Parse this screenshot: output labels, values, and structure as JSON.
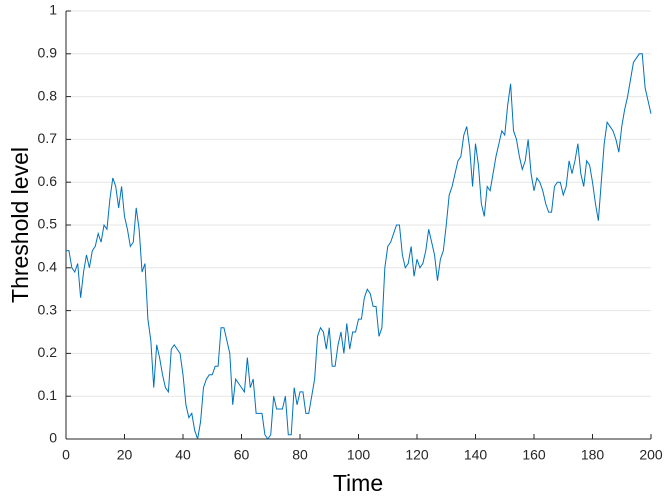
{
  "chart_data": {
    "type": "line",
    "xlabel": "Time",
    "ylabel": "Threshold level",
    "color": "#0072bd",
    "grid": "y",
    "x": [
      0,
      1,
      2,
      3,
      4,
      5,
      6,
      7,
      8,
      9,
      10,
      11,
      12,
      13,
      14,
      15,
      16,
      17,
      18,
      19,
      20,
      21,
      22,
      23,
      24,
      25,
      26,
      27,
      28,
      29,
      30,
      31,
      32,
      33,
      34,
      35,
      36,
      37,
      38,
      39,
      40,
      41,
      42,
      43,
      44,
      45,
      46,
      47,
      48,
      49,
      50,
      51,
      52,
      53,
      54,
      55,
      56,
      57,
      58,
      59,
      60,
      61,
      62,
      63,
      64,
      65,
      66,
      67,
      68,
      69,
      70,
      71,
      72,
      73,
      74,
      75,
      76,
      77,
      78,
      79,
      80,
      81,
      82,
      83,
      84,
      85,
      86,
      87,
      88,
      89,
      90,
      91,
      92,
      93,
      94,
      95,
      96,
      97,
      98,
      99,
      100,
      101,
      102,
      103,
      104,
      105,
      106,
      107,
      108,
      109,
      110,
      111,
      112,
      113,
      114,
      115,
      116,
      117,
      118,
      119,
      120,
      121,
      122,
      123,
      124,
      125,
      126,
      127,
      128,
      129,
      130,
      131,
      132,
      133,
      134,
      135,
      136,
      137,
      138,
      139,
      140,
      141,
      142,
      143,
      144,
      145,
      146,
      147,
      148,
      149,
      150,
      151,
      152,
      153,
      154,
      155,
      156,
      157,
      158,
      159,
      160,
      161,
      162,
      163,
      164,
      165,
      166,
      167,
      168,
      169,
      170,
      171,
      172,
      173,
      174,
      175,
      176,
      177,
      178,
      179,
      180,
      181,
      182,
      183,
      184,
      185,
      186,
      187,
      188,
      189,
      190,
      191,
      192,
      193,
      194,
      195,
      196,
      197,
      198,
      199,
      200
    ],
    "values": [
      0.44,
      0.44,
      0.4,
      0.39,
      0.41,
      0.33,
      0.39,
      0.43,
      0.4,
      0.44,
      0.45,
      0.48,
      0.46,
      0.5,
      0.49,
      0.56,
      0.61,
      0.59,
      0.54,
      0.59,
      0.52,
      0.49,
      0.45,
      0.46,
      0.54,
      0.49,
      0.39,
      0.41,
      0.28,
      0.23,
      0.12,
      0.22,
      0.19,
      0.15,
      0.12,
      0.11,
      0.21,
      0.22,
      0.21,
      0.2,
      0.15,
      0.08,
      0.05,
      0.06,
      0.02,
      0.0,
      0.04,
      0.12,
      0.14,
      0.15,
      0.15,
      0.17,
      0.17,
      0.26,
      0.26,
      0.23,
      0.2,
      0.08,
      0.14,
      0.13,
      0.12,
      0.11,
      0.19,
      0.12,
      0.14,
      0.06,
      0.06,
      0.06,
      0.01,
      0.0,
      0.01,
      0.1,
      0.07,
      0.07,
      0.07,
      0.1,
      0.01,
      0.01,
      0.12,
      0.08,
      0.11,
      0.11,
      0.06,
      0.06,
      0.1,
      0.14,
      0.24,
      0.26,
      0.25,
      0.21,
      0.26,
      0.17,
      0.17,
      0.22,
      0.25,
      0.2,
      0.27,
      0.21,
      0.25,
      0.25,
      0.28,
      0.28,
      0.33,
      0.35,
      0.34,
      0.31,
      0.31,
      0.24,
      0.26,
      0.4,
      0.45,
      0.46,
      0.48,
      0.5,
      0.5,
      0.43,
      0.4,
      0.41,
      0.45,
      0.38,
      0.42,
      0.4,
      0.41,
      0.44,
      0.49,
      0.46,
      0.43,
      0.37,
      0.42,
      0.44,
      0.5,
      0.57,
      0.59,
      0.62,
      0.65,
      0.66,
      0.71,
      0.73,
      0.68,
      0.59,
      0.69,
      0.64,
      0.55,
      0.52,
      0.59,
      0.58,
      0.62,
      0.66,
      0.69,
      0.72,
      0.71,
      0.78,
      0.83,
      0.72,
      0.7,
      0.66,
      0.63,
      0.65,
      0.7,
      0.62,
      0.58,
      0.61,
      0.6,
      0.58,
      0.55,
      0.53,
      0.53,
      0.59,
      0.6,
      0.6,
      0.57,
      0.59,
      0.65,
      0.62,
      0.65,
      0.69,
      0.62,
      0.59,
      0.65,
      0.64,
      0.6,
      0.55,
      0.51,
      0.6,
      0.69,
      0.74,
      0.73,
      0.72,
      0.7,
      0.67,
      0.73,
      0.77,
      0.8,
      0.84,
      0.88,
      0.89,
      0.9,
      0.9,
      0.82,
      0.79,
      0.76
    ],
    "xlim": [
      0,
      200
    ],
    "xticks": [
      0,
      20,
      40,
      60,
      80,
      100,
      120,
      140,
      160,
      180,
      200
    ],
    "ylim": [
      0,
      1
    ],
    "yticks": [
      0,
      0.1,
      0.2,
      0.3,
      0.4,
      0.5,
      0.6,
      0.7,
      0.8,
      0.9,
      1
    ]
  }
}
